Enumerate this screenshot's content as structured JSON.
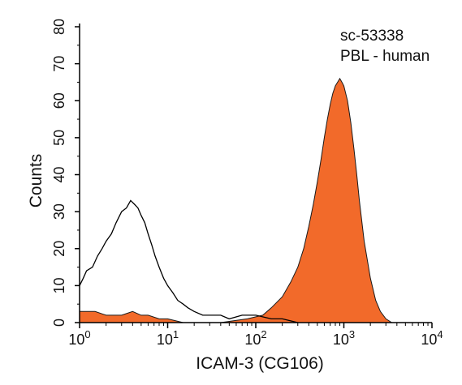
{
  "chart_data": {
    "type": "area",
    "xscale": "log",
    "xlim": [
      1,
      10000
    ],
    "ylim": [
      0,
      80
    ],
    "grid": false,
    "xlabel": "ICAM-3 (CG106)",
    "ylabel": "Counts",
    "x_tick_labels": [
      {
        "base": "10",
        "exp": "0"
      },
      {
        "base": "10",
        "exp": "1"
      },
      {
        "base": "10",
        "exp": "2"
      },
      {
        "base": "10",
        "exp": "3"
      },
      {
        "base": "10",
        "exp": "4"
      }
    ],
    "y_tick_labels": [
      "0",
      "10",
      "20",
      "30",
      "40",
      "50",
      "60",
      "70",
      "80"
    ],
    "annotations": [
      "sc-53338",
      "PBL - human"
    ],
    "series": [
      {
        "style": "outline",
        "color": "#000000",
        "x": [
          1,
          1.1,
          1.2,
          1.4,
          1.6,
          1.8,
          2.0,
          2.3,
          2.6,
          3.0,
          3.4,
          3.8,
          4.2,
          4.6,
          5.0,
          5.5,
          6.0,
          6.6,
          7.2,
          8.0,
          9.0,
          10,
          11.5,
          13,
          15,
          17,
          20,
          25,
          30,
          40,
          50,
          70,
          100,
          150,
          200,
          300
        ],
        "y": [
          10,
          12,
          14,
          15,
          18,
          20,
          22,
          24,
          27,
          30,
          31,
          33,
          32,
          31,
          29,
          27,
          24,
          21,
          18,
          15,
          12,
          10,
          8,
          6,
          5,
          4,
          3,
          2,
          2,
          2,
          1,
          2,
          2,
          1,
          1,
          0
        ]
      },
      {
        "style": "filled",
        "color": "#f26a2a",
        "x": [
          1,
          1.5,
          2,
          3,
          4,
          5,
          6,
          8,
          10,
          15,
          20,
          40,
          80,
          120,
          150,
          200,
          250,
          300,
          350,
          400,
          450,
          500,
          550,
          600,
          650,
          700,
          750,
          800,
          850,
          900,
          950,
          1000,
          1100,
          1200,
          1300,
          1400,
          1500,
          1700,
          2000,
          2300,
          2600,
          3000,
          3500
        ],
        "y": [
          3,
          3,
          2,
          2,
          3,
          2,
          2,
          1,
          1,
          0,
          0,
          0,
          1,
          2,
          4,
          7,
          11,
          15,
          20,
          26,
          32,
          38,
          44,
          50,
          55,
          59,
          62,
          64,
          65,
          66,
          65,
          64,
          60,
          54,
          47,
          40,
          33,
          22,
          12,
          6,
          3,
          1,
          0
        ]
      }
    ]
  }
}
